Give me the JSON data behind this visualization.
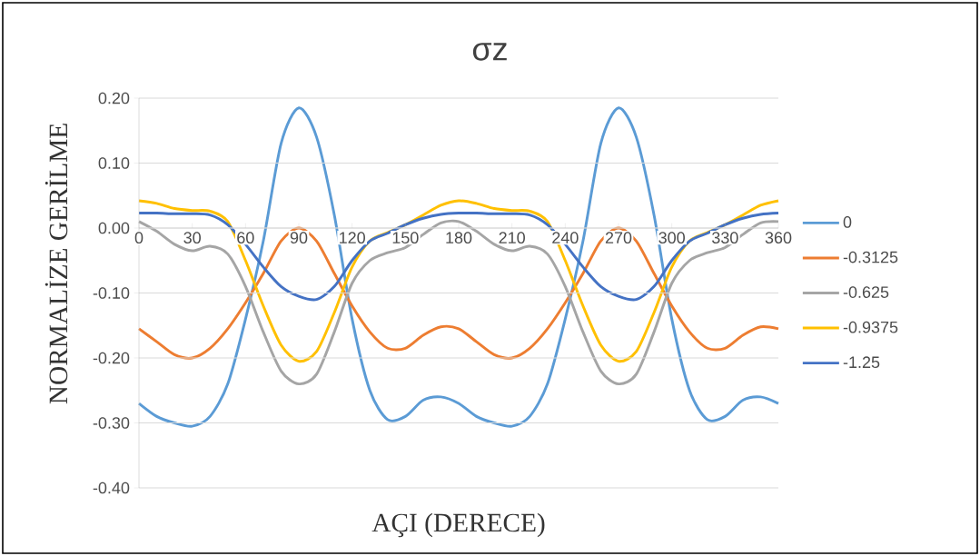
{
  "chart_data": {
    "type": "line",
    "title": "σz",
    "xlabel": "AÇI (DERECE)",
    "ylabel": "NORMALİZE GERİLME",
    "x": [
      0,
      10,
      20,
      30,
      40,
      50,
      60,
      70,
      80,
      90,
      100,
      110,
      120,
      130,
      140,
      150,
      160,
      170,
      180,
      190,
      200,
      210,
      220,
      230,
      240,
      250,
      260,
      270,
      280,
      290,
      300,
      310,
      320,
      330,
      340,
      350,
      360
    ],
    "series": [
      {
        "name": "0",
        "color": "#5b9bd5",
        "values": [
          -0.27,
          -0.29,
          -0.3,
          -0.305,
          -0.29,
          -0.24,
          -0.14,
          -0.02,
          0.13,
          0.185,
          0.14,
          0.02,
          -0.14,
          -0.25,
          -0.295,
          -0.29,
          -0.265,
          -0.26,
          -0.27,
          -0.29,
          -0.3,
          -0.305,
          -0.29,
          -0.24,
          -0.14,
          -0.02,
          0.13,
          0.185,
          0.14,
          0.02,
          -0.14,
          -0.25,
          -0.295,
          -0.29,
          -0.265,
          -0.26,
          -0.27
        ]
      },
      {
        "name": "-0.3125",
        "color": "#ed7d31",
        "values": [
          -0.155,
          -0.175,
          -0.195,
          -0.2,
          -0.185,
          -0.155,
          -0.115,
          -0.07,
          -0.02,
          0.0,
          -0.02,
          -0.07,
          -0.12,
          -0.16,
          -0.185,
          -0.185,
          -0.165,
          -0.152,
          -0.155,
          -0.175,
          -0.195,
          -0.2,
          -0.185,
          -0.155,
          -0.115,
          -0.07,
          -0.02,
          0.0,
          -0.02,
          -0.07,
          -0.12,
          -0.16,
          -0.185,
          -0.185,
          -0.165,
          -0.152,
          -0.155
        ]
      },
      {
        "name": "-0.625",
        "color": "#a5a5a5",
        "values": [
          0.01,
          -0.005,
          -0.025,
          -0.035,
          -0.028,
          -0.04,
          -0.09,
          -0.16,
          -0.22,
          -0.24,
          -0.225,
          -0.16,
          -0.085,
          -0.05,
          -0.038,
          -0.03,
          -0.01,
          0.008,
          0.01,
          -0.005,
          -0.025,
          -0.035,
          -0.028,
          -0.04,
          -0.09,
          -0.16,
          -0.22,
          -0.24,
          -0.225,
          -0.16,
          -0.085,
          -0.05,
          -0.038,
          -0.03,
          -0.01,
          0.008,
          0.01
        ]
      },
      {
        "name": "-0.9375",
        "color": "#ffc000",
        "values": [
          0.042,
          0.038,
          0.03,
          0.027,
          0.026,
          0.01,
          -0.05,
          -0.12,
          -0.18,
          -0.205,
          -0.19,
          -0.13,
          -0.06,
          -0.02,
          -0.007,
          0.005,
          0.02,
          0.035,
          0.042,
          0.038,
          0.03,
          0.027,
          0.026,
          0.01,
          -0.05,
          -0.12,
          -0.18,
          -0.205,
          -0.19,
          -0.13,
          -0.06,
          -0.02,
          -0.007,
          0.005,
          0.02,
          0.035,
          0.042
        ]
      },
      {
        "name": "-1.25",
        "color": "#4472c4",
        "values": [
          0.023,
          0.023,
          0.022,
          0.022,
          0.02,
          0.005,
          -0.025,
          -0.06,
          -0.09,
          -0.105,
          -0.11,
          -0.09,
          -0.05,
          -0.02,
          -0.008,
          0.005,
          0.015,
          0.021,
          0.023,
          0.023,
          0.022,
          0.022,
          0.02,
          0.005,
          -0.025,
          -0.06,
          -0.09,
          -0.105,
          -0.11,
          -0.09,
          -0.05,
          -0.02,
          -0.008,
          0.005,
          0.015,
          0.021,
          0.023
        ]
      }
    ],
    "xlim": [
      0,
      360
    ],
    "xticks": [
      0,
      30,
      60,
      90,
      120,
      150,
      180,
      210,
      240,
      270,
      300,
      330,
      360
    ],
    "ylim": [
      -0.4,
      0.2
    ],
    "yticks": [
      {
        "value": -0.4,
        "label": "-0.40"
      },
      {
        "value": -0.3,
        "label": "-0.30"
      },
      {
        "value": -0.2,
        "label": "-0.20"
      },
      {
        "value": -0.1,
        "label": "-0.10"
      },
      {
        "value": 0,
        "label": "0.00"
      },
      {
        "value": 0.1,
        "label": "0.10"
      },
      {
        "value": 0.2,
        "label": "0.20"
      }
    ],
    "grid": "y",
    "legend": "right",
    "marker": "none",
    "line_style": "solid"
  }
}
